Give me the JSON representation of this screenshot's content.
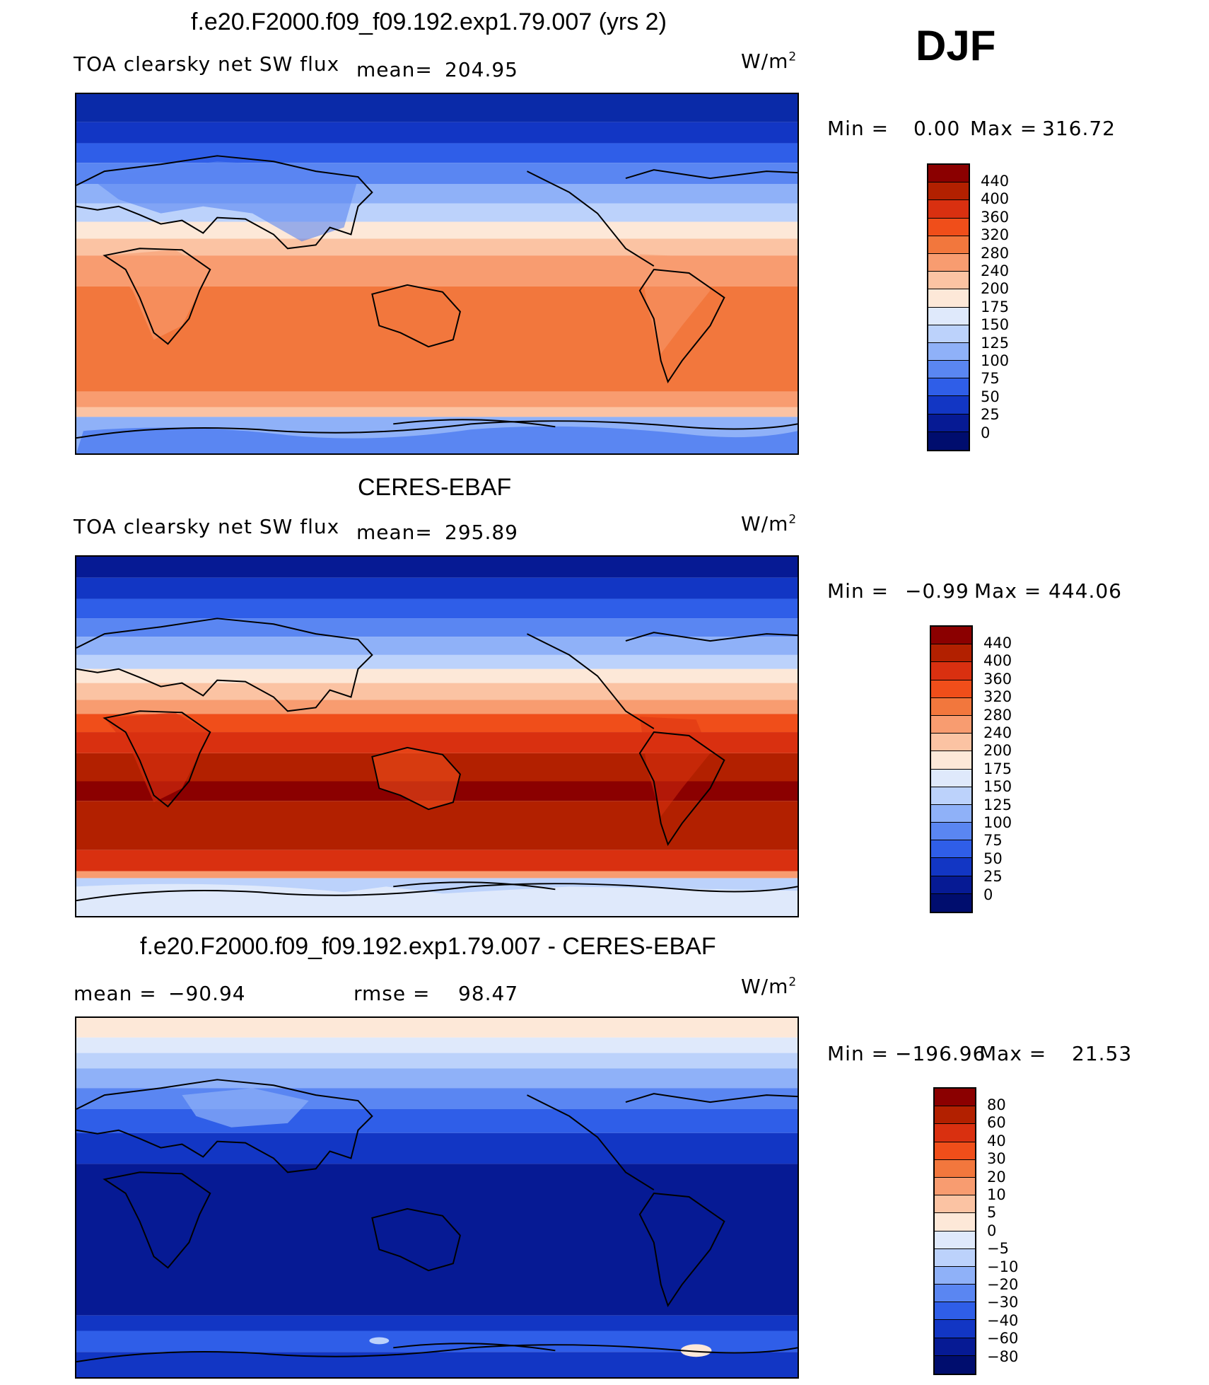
{
  "season": "DJF",
  "panels": [
    {
      "title": "f.e20.F2000.f09_f09.192.exp1.79.007 (yrs 2)",
      "variable": "TOA clearsky net SW flux",
      "mean_label": "mean=",
      "mean_value": "204.95",
      "units_base": "W/m",
      "units_exp": "2",
      "min_label": "Min =",
      "min_value": "0.00",
      "max_label": "Max =",
      "max_value": "316.72"
    },
    {
      "title": "CERES-EBAF",
      "variable": "TOA clearsky net SW flux",
      "mean_label": "mean=",
      "mean_value": "295.89",
      "units_base": "W/m",
      "units_exp": "2",
      "min_label": "Min =",
      "min_value": "−0.99",
      "max_label": "Max =",
      "max_value": "444.06"
    },
    {
      "title": "f.e20.F2000.f09_f09.192.exp1.79.007 - CERES-EBAF",
      "mean_label": "mean =",
      "mean_value": "−90.94",
      "rmse_label": "rmse =",
      "rmse_value": "98.47",
      "units_base": "W/m",
      "units_exp": "2",
      "min_label": "Min =",
      "min_value": "−196.96",
      "max_label": "Max =",
      "max_value": "21.53"
    }
  ],
  "colorbars": {
    "flux": {
      "levels": [
        "440",
        "400",
        "360",
        "320",
        "280",
        "240",
        "200",
        "175",
        "150",
        "125",
        "100",
        "75",
        "50",
        "25",
        "0"
      ],
      "colors": [
        "#8b0000",
        "#b22000",
        "#d93010",
        "#f04e1a",
        "#f2773d",
        "#f89c70",
        "#fbc3a3",
        "#fde8d8",
        "#dfe9fb",
        "#bcd2fb",
        "#8fb1f8",
        "#5a86f2",
        "#2f5ee8",
        "#1236c4",
        "#061a94",
        "#000d6e"
      ]
    },
    "diff": {
      "levels": [
        "80",
        "60",
        "40",
        "30",
        "20",
        "10",
        "5",
        "0",
        "−5",
        "−10",
        "−20",
        "−30",
        "−40",
        "−60",
        "−80"
      ],
      "colors": [
        "#8b0000",
        "#b22000",
        "#d93010",
        "#f04e1a",
        "#f2773d",
        "#f89c70",
        "#fbc3a3",
        "#fde8d8",
        "#dfe9fb",
        "#bcd2fb",
        "#8fb1f8",
        "#5a86f2",
        "#2f5ee8",
        "#1236c4",
        "#061a94",
        "#000d6e"
      ]
    }
  }
}
